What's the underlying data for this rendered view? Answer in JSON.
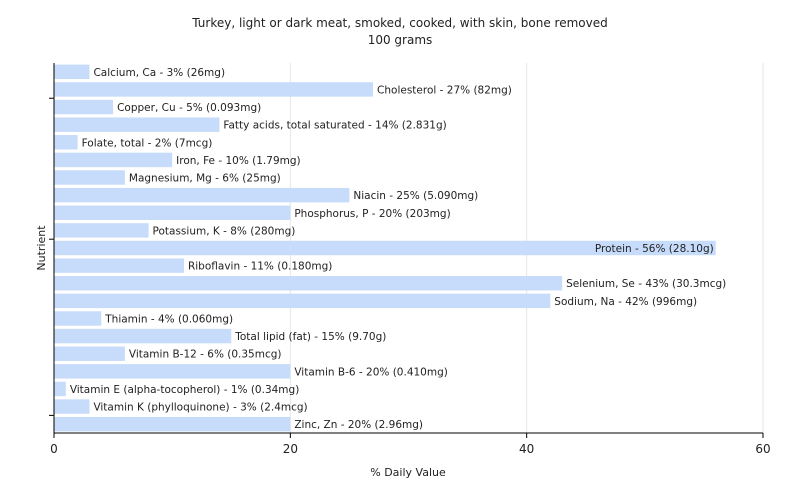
{
  "chart_data": {
    "type": "bar",
    "orientation": "horizontal",
    "title": "Turkey, light or dark meat, smoked, cooked, with skin, bone removed",
    "subtitle": "100 grams",
    "xlabel": "% Daily Value",
    "ylabel": "Nutrient",
    "xlim": [
      0,
      60
    ],
    "xticks": [
      0,
      20,
      40,
      60
    ],
    "grid": true,
    "bar_color": "#c6dcfa",
    "categories": [
      "Calcium, Ca - 3% (26mg)",
      "Cholesterol - 27% (82mg)",
      "Copper, Cu - 5% (0.093mg)",
      "Fatty acids, total saturated - 14% (2.831g)",
      "Folate, total - 2% (7mcg)",
      "Iron, Fe - 10% (1.79mg)",
      "Magnesium, Mg - 6% (25mg)",
      "Niacin - 25% (5.090mg)",
      "Phosphorus, P - 20% (203mg)",
      "Potassium, K - 8% (280mg)",
      "Protein - 56% (28.10g)",
      "Riboflavin - 11% (0.180mg)",
      "Selenium, Se - 43% (30.3mcg)",
      "Sodium, Na - 42% (996mg)",
      "Thiamin - 4% (0.060mg)",
      "Total lipid (fat) - 15% (9.70g)",
      "Vitamin B-12 - 6% (0.35mcg)",
      "Vitamin B-6 - 20% (0.410mg)",
      "Vitamin E (alpha-tocopherol) - 1% (0.34mg)",
      "Vitamin K (phylloquinone) - 3% (2.4mcg)",
      "Zinc, Zn - 20% (2.96mg)"
    ],
    "values": [
      3,
      27,
      5,
      14,
      2,
      10,
      6,
      25,
      20,
      8,
      56,
      11,
      43,
      42,
      4,
      15,
      6,
      20,
      1,
      3,
      20
    ]
  }
}
